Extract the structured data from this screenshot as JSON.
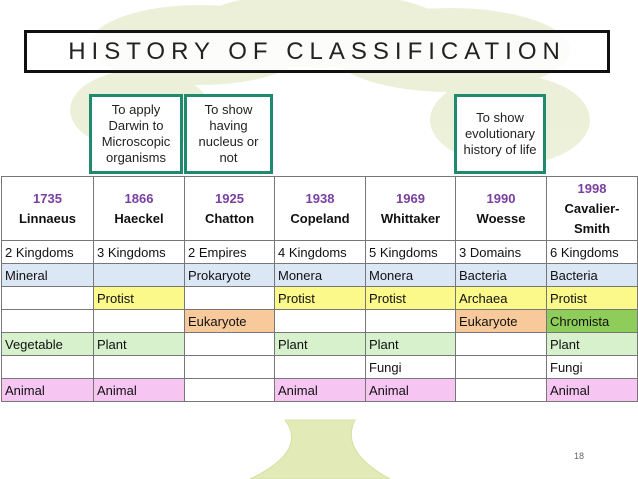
{
  "title": "HISTORY OF CLASSIFICATION",
  "notes": [
    {
      "text": "To apply Darwin to Microscopic organisms"
    },
    {
      "text": "To show having nucleus or not"
    },
    {
      "text": "To show evolutionary history of life"
    }
  ],
  "columns": [
    {
      "year": "1735",
      "name": "Linnaeus"
    },
    {
      "year": "1866",
      "name": "Haeckel"
    },
    {
      "year": "1925",
      "name": "Chatton"
    },
    {
      "year": "1938",
      "name": "Copeland"
    },
    {
      "year": "1969",
      "name": "Whittaker"
    },
    {
      "year": "1990",
      "name": "Woesse"
    },
    {
      "year": "1998",
      "name": "Cavalier-Smith"
    }
  ],
  "rows": [
    [
      "2 Kingdoms",
      "3 Kingdoms",
      "2 Empires",
      "4 Kingdoms",
      "5 Kingdoms",
      "3 Domains",
      "6 Kingdoms"
    ],
    [
      "Mineral",
      "",
      "Prokaryote",
      "Monera",
      "Monera",
      "Bacteria",
      "Bacteria"
    ],
    [
      "",
      "Protist",
      "",
      "Protist",
      "Protist",
      "Archaea",
      "Protist"
    ],
    [
      "",
      "",
      "Eukaryote",
      "",
      "",
      "Eukaryote",
      "Chromista"
    ],
    [
      "Vegetable",
      "Plant",
      "",
      "Plant",
      "Plant",
      "",
      "Plant"
    ],
    [
      "",
      "",
      "",
      "",
      "Fungi",
      "",
      "Fungi"
    ],
    [
      "Animal",
      "Animal",
      "",
      "Animal",
      "Animal",
      "",
      "Animal"
    ]
  ],
  "colors": {
    "title_border": "#111111",
    "note_border": "#1f8a70",
    "year_text": "#7a3fa0",
    "blue": "#dbe7f5",
    "yellow": "#fbf98a",
    "orange": "#f8c99b",
    "green": "#d6f1cc",
    "dark_green": "#8fcd5a",
    "pink": "#f6c5f2"
  },
  "page_number": "18"
}
